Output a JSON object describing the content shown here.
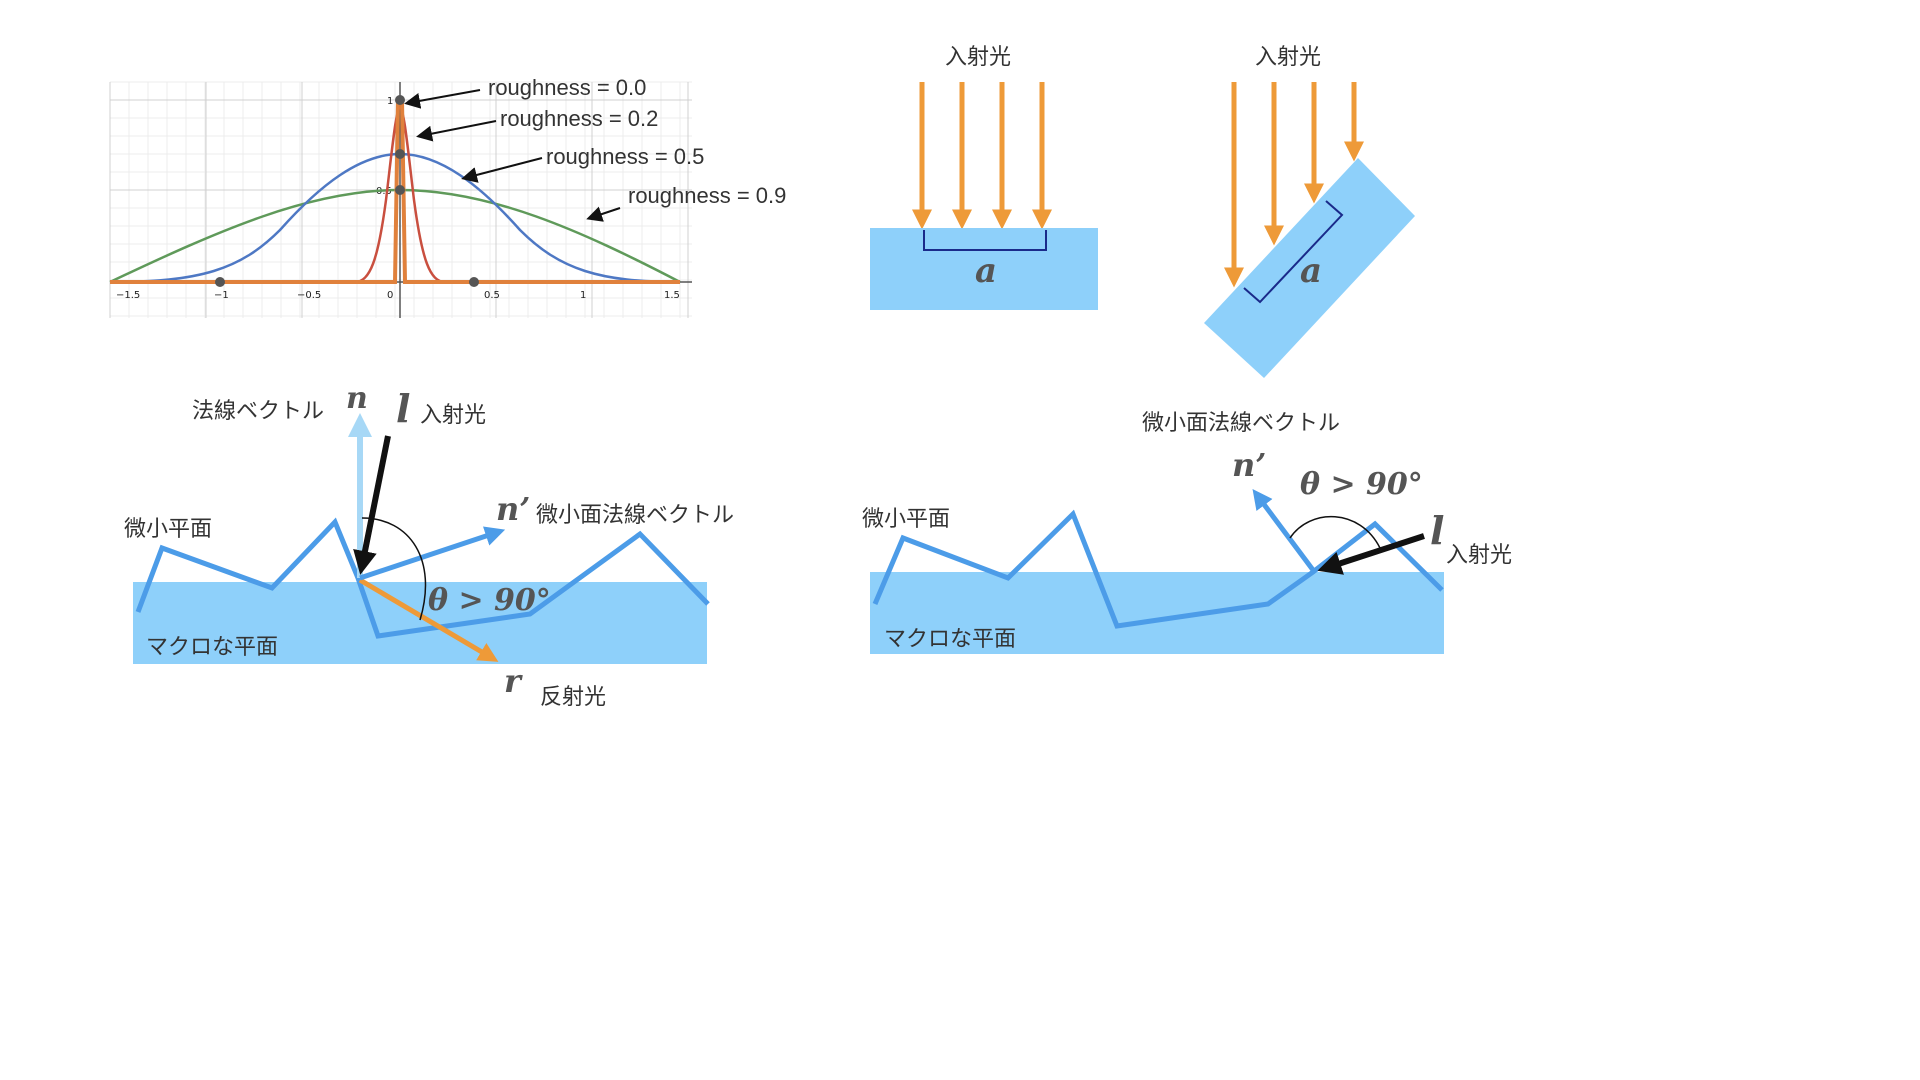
{
  "graph": {
    "x_ticks": [
      "−1.5",
      "−1",
      "−0.5",
      "0",
      "0.5",
      "1",
      "1.5"
    ],
    "y_ticks": [
      "1",
      "0.5"
    ],
    "curves": [
      {
        "label": "roughness = 0.0",
        "color": "#e0813c"
      },
      {
        "label": "roughness = 0.2",
        "color": "#c94f3f"
      },
      {
        "label": "roughness = 0.5",
        "color": "#4e78c4"
      },
      {
        "label": "roughness = 0.9",
        "color": "#5f9a5a"
      }
    ]
  },
  "colors": {
    "surface": "#8ed0fa",
    "line_blue": "#4c9ce8",
    "light_orange": "#ee9a38",
    "bracket": "#1a2a8a",
    "normal_light": "#a7d8f6",
    "black": "#111111"
  },
  "area_flat": {
    "light_label": "入射光",
    "area_symbol": "a"
  },
  "area_tilted": {
    "light_label": "入射光",
    "area_symbol": "a"
  },
  "micro_left": {
    "normal_symbol": "n",
    "normal_label": "法線ベクトル",
    "light_symbol": "l",
    "light_label": "入射光",
    "micro_normal_symbol": "n’",
    "micro_normal_label": "微小面法線ベクトル",
    "micro_surface_label": "微小平面",
    "angle_label": "θ > 90°",
    "macro_surface_label": "マクロな平面",
    "reflect_symbol": "r",
    "reflect_label": "反射光"
  },
  "micro_right": {
    "micro_normal_label": "微小面法線ベクトル",
    "micro_normal_symbol": "n’",
    "angle_label": "θ > 90°",
    "light_symbol": "l",
    "light_label": "入射光",
    "micro_surface_label": "微小平面",
    "macro_surface_label": "マクロな平面"
  }
}
